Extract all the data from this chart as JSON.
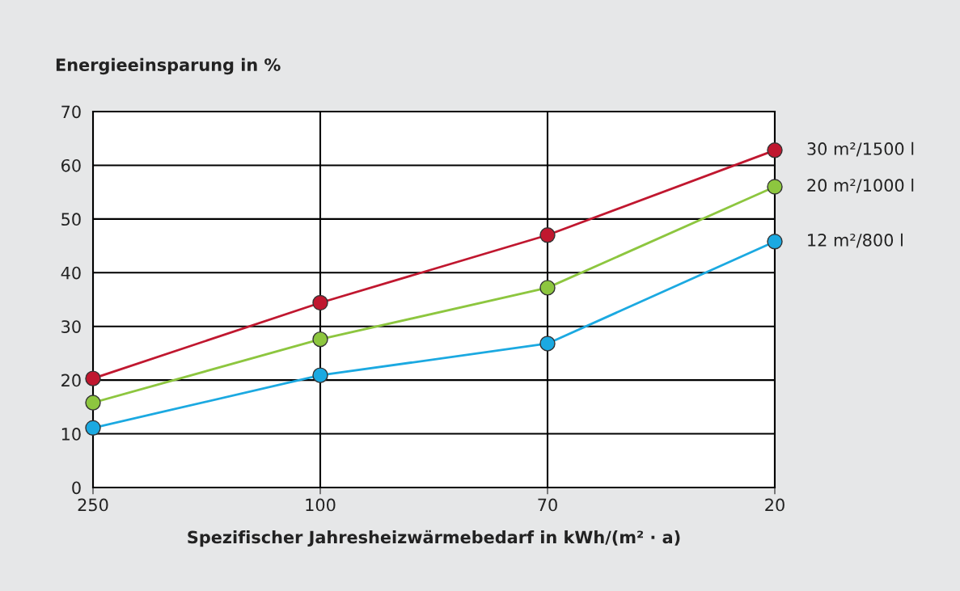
{
  "chart_data": {
    "type": "line",
    "ylabel": "Energieeinsparung in %",
    "xlabel": "Spezifischer Jahresheizwärmebedarf in kWh/(m² · a)",
    "categories": [
      "250",
      "100",
      "70",
      "20"
    ],
    "series": [
      {
        "name": "30 m²/1500 l",
        "color": "#c0172f",
        "values": [
          20.3,
          34.4,
          47.0,
          62.8
        ]
      },
      {
        "name": "20 m²/1000 l",
        "color": "#8dc63f",
        "values": [
          15.8,
          27.6,
          37.2,
          56.0
        ]
      },
      {
        "name": "12 m²/800 l",
        "color": "#1ba9e1",
        "values": [
          11.1,
          20.9,
          26.8,
          45.8
        ]
      }
    ],
    "ylim": [
      0,
      70
    ],
    "yticks": [
      0,
      10,
      20,
      30,
      40,
      50,
      60,
      70
    ],
    "grid": true,
    "marker": "circle",
    "line_style": "solid",
    "legend": false
  }
}
